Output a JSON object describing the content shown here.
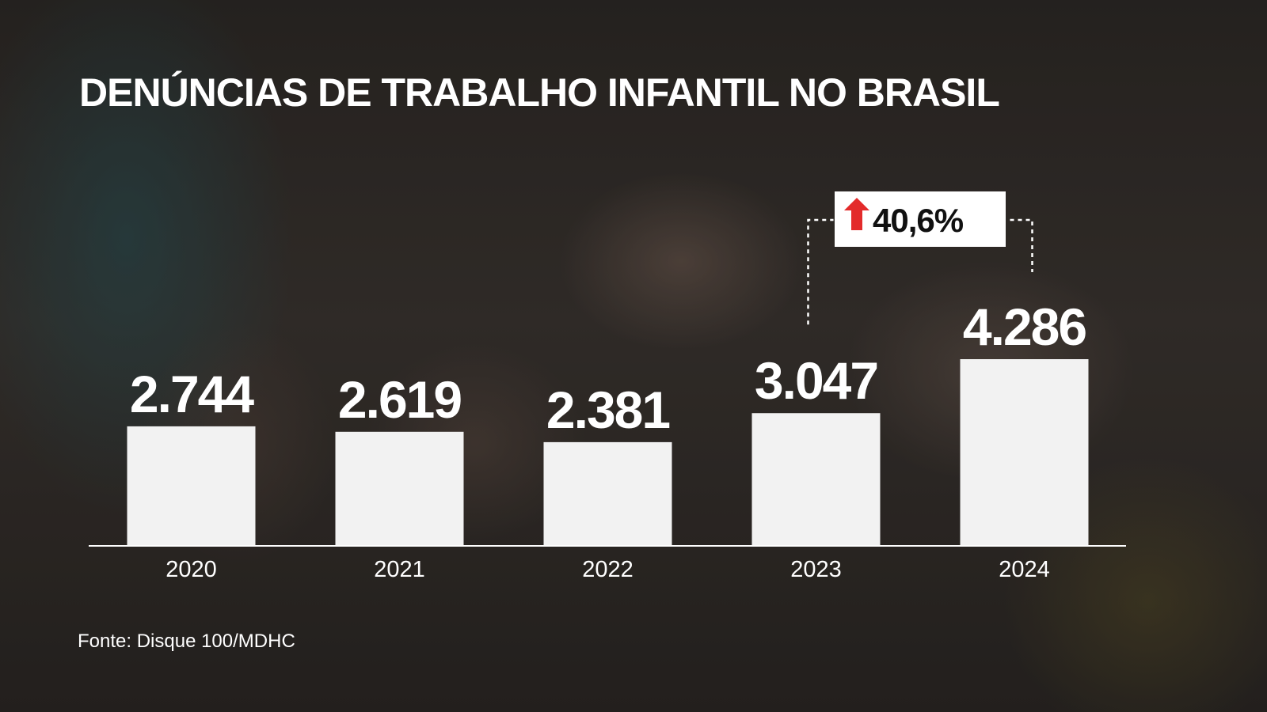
{
  "title": "DENÚNCIAS DE TRABALHO INFANTIL NO BRASIL",
  "source": "Fonte: Disque 100/MDHC",
  "colors": {
    "bar": "#f2f2f2",
    "text": "#ffffff",
    "accent_arrow": "#e32b2b",
    "badge_bg": "#ffffff",
    "badge_text": "#111111"
  },
  "chart_data": {
    "type": "bar",
    "categories": [
      "2020",
      "2021",
      "2022",
      "2023",
      "2024"
    ],
    "values": [
      2744,
      2619,
      2381,
      3047,
      4286
    ],
    "value_labels": [
      "2.744",
      "2.619",
      "2.381",
      "3.047",
      "4.286"
    ],
    "title": "DENÚNCIAS DE TRABALHO INFANTIL NO BRASIL",
    "xlabel": "",
    "ylabel": "",
    "ylim": [
      0,
      4286
    ],
    "grid": false,
    "legend": "none",
    "annotation": {
      "text": "40,6%",
      "icon": "arrow-up-icon",
      "from_category": "2023",
      "to_category": "2024"
    }
  }
}
